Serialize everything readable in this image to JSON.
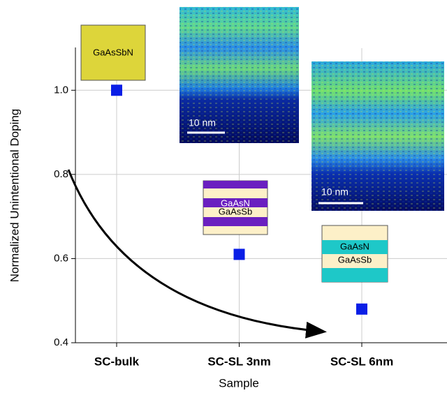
{
  "chart_data": {
    "type": "scatter",
    "x_label": "Sample",
    "y_label": "Normalized Unintentional Doping",
    "categories": [
      "SC-bulk",
      "SC-SL 3nm",
      "SC-SL 6nm"
    ],
    "values": [
      1.0,
      0.61,
      0.48
    ],
    "color": "#0a1ee6",
    "ylim": [
      0.4,
      1.1
    ],
    "yticks": [
      0.4,
      0.6,
      0.8,
      {
        "value": 1,
        "label": "1.0"
      }
    ],
    "grid": true,
    "annotations": [
      "GaAsSbN",
      "GaAsN",
      "GaAsSb",
      "GaAsN",
      "GaAsSb",
      "10 nm",
      "10 nm"
    ]
  }
}
